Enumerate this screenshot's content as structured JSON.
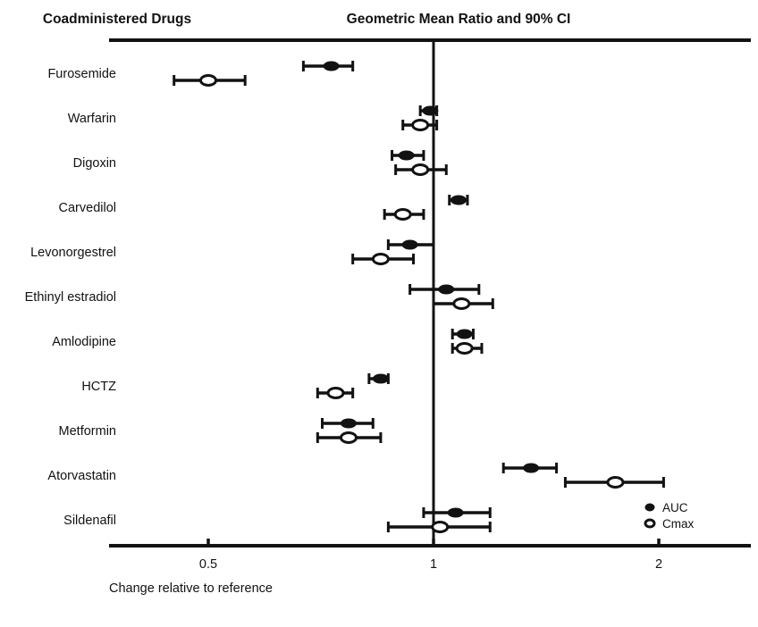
{
  "page": {
    "background": "#ffffff",
    "ink_color": "#121212"
  },
  "chart_data": {
    "type": "scatter",
    "variant": "forest-plot",
    "title_left": "Coadministered Drugs",
    "title_right": "Geometric Mean Ratio and 90% CI",
    "xlabel": "Change relative to reference",
    "x_scale": "log2",
    "xlim": [
      0.37,
      2.66
    ],
    "x_ticks": [
      0.5,
      1,
      2
    ],
    "x_tick_labels": [
      "0.5",
      "1",
      "2"
    ],
    "reference_line": 1.0,
    "grid": false,
    "legend_position": "bottom-right",
    "legend": [
      {
        "label": "AUC",
        "marker": "filled-circle"
      },
      {
        "label": "Cmax",
        "marker": "open-circle"
      }
    ],
    "rows": [
      {
        "drug": "Furosemide",
        "auc": {
          "value": 0.73,
          "lo": 0.67,
          "hi": 0.78
        },
        "cmax": {
          "value": 0.5,
          "lo": 0.45,
          "hi": 0.56
        }
      },
      {
        "drug": "Warfarin",
        "auc": {
          "value": 0.99,
          "lo": 0.96,
          "hi": 1.01
        },
        "cmax": {
          "value": 0.96,
          "lo": 0.91,
          "hi": 1.01
        }
      },
      {
        "drug": "Digoxin",
        "auc": {
          "value": 0.92,
          "lo": 0.88,
          "hi": 0.97
        },
        "cmax": {
          "value": 0.96,
          "lo": 0.89,
          "hi": 1.04
        }
      },
      {
        "drug": "Carvedilol",
        "auc": {
          "value": 1.08,
          "lo": 1.05,
          "hi": 1.11
        },
        "cmax": {
          "value": 0.91,
          "lo": 0.86,
          "hi": 0.97
        }
      },
      {
        "drug": "Levonorgestrel",
        "auc": {
          "value": 0.93,
          "lo": 0.87,
          "hi": 1.0
        },
        "cmax": {
          "value": 0.85,
          "lo": 0.78,
          "hi": 0.94
        }
      },
      {
        "drug": "Ethinyl estradiol",
        "auc": {
          "value": 1.04,
          "lo": 0.93,
          "hi": 1.15
        },
        "cmax": {
          "value": 1.09,
          "lo": 1.0,
          "hi": 1.2
        }
      },
      {
        "drug": "Amlodipine",
        "auc": {
          "value": 1.1,
          "lo": 1.06,
          "hi": 1.13
        },
        "cmax": {
          "value": 1.1,
          "lo": 1.06,
          "hi": 1.16
        }
      },
      {
        "drug": "HCTZ",
        "auc": {
          "value": 0.85,
          "lo": 0.82,
          "hi": 0.87
        },
        "cmax": {
          "value": 0.74,
          "lo": 0.7,
          "hi": 0.78
        }
      },
      {
        "drug": "Metformin",
        "auc": {
          "value": 0.77,
          "lo": 0.71,
          "hi": 0.83
        },
        "cmax": {
          "value": 0.77,
          "lo": 0.7,
          "hi": 0.85
        }
      },
      {
        "drug": "Atorvastatin",
        "auc": {
          "value": 1.35,
          "lo": 1.24,
          "hi": 1.46
        },
        "cmax": {
          "value": 1.75,
          "lo": 1.5,
          "hi": 2.03
        }
      },
      {
        "drug": "Sildenafil",
        "auc": {
          "value": 1.07,
          "lo": 0.97,
          "hi": 1.19
        },
        "cmax": {
          "value": 1.02,
          "lo": 0.87,
          "hi": 1.19
        }
      }
    ]
  }
}
